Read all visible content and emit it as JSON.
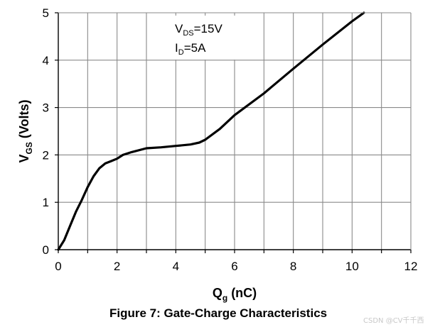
{
  "chart_data": {
    "type": "line",
    "caption": "Figure 7: Gate-Charge Characteristics",
    "xlabel_main": "Q",
    "xlabel_sub": "g",
    "xlabel_unit": " (nC)",
    "ylabel_main": "V",
    "ylabel_sub": "GS",
    "ylabel_unit": " (Volts)",
    "xlim": [
      0,
      12
    ],
    "ylim": [
      0,
      5
    ],
    "x_ticks": [
      0,
      2,
      4,
      6,
      8,
      10,
      12
    ],
    "y_ticks": [
      0,
      1,
      2,
      3,
      4,
      5
    ],
    "grid": true,
    "annotations": {
      "vds_main": "V",
      "vds_sub": "DS",
      "vds_value": "=15V",
      "id_main": "I",
      "id_sub": "D",
      "id_value": "=5A"
    },
    "series": [
      {
        "x": [
          0,
          0.2,
          0.4,
          0.6,
          0.8,
          1.0,
          1.2,
          1.4,
          1.6,
          1.8,
          2.0,
          2.2,
          2.5,
          3.0,
          3.5,
          4.0,
          4.5,
          4.8,
          5.0,
          5.5,
          6.0,
          7.0,
          8.0,
          9.0,
          10.0,
          10.4
        ],
        "y": [
          0,
          0.2,
          0.5,
          0.8,
          1.05,
          1.32,
          1.55,
          1.72,
          1.82,
          1.87,
          1.92,
          2.0,
          2.06,
          2.14,
          2.16,
          2.19,
          2.22,
          2.26,
          2.32,
          2.55,
          2.84,
          3.3,
          3.82,
          4.33,
          4.82,
          5.0
        ]
      }
    ]
  },
  "watermark": "CSDN @CV千千西"
}
